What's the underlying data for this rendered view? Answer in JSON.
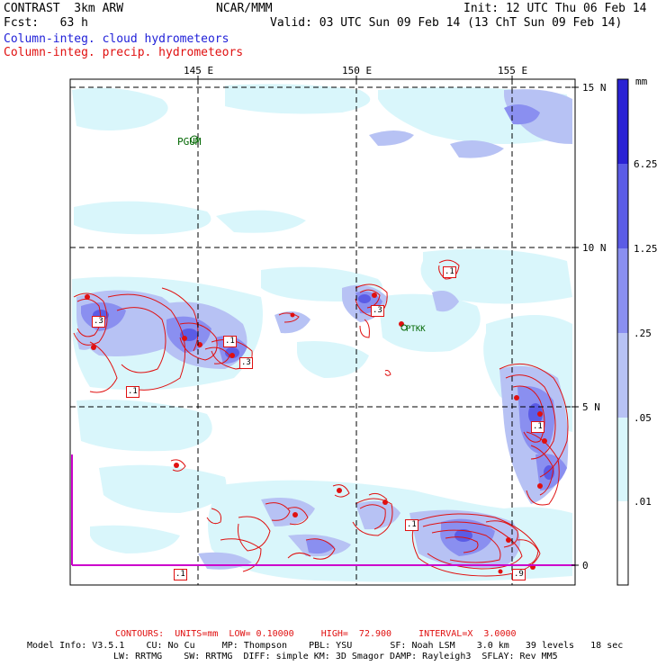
{
  "header": {
    "model": "CONTRAST  3km ARW",
    "org": "NCAR/MMM",
    "init": "Init: 12 UTC Thu 06 Feb 14",
    "fcst": "Fcst:   63 h",
    "valid": "Valid: 03 UTC Sun 09 Feb 14 (13 ChT Sun 09 Feb 14)",
    "cloud_label": "Column-integ. cloud hydrometeors",
    "precip_label": "Column-integ. precip. hydrometeors"
  },
  "colors": {
    "cloud": "#1f1fd8",
    "precip": "#e01010",
    "shade_1": "#d9f6fb",
    "shade_2": "#b7c2f4",
    "shade_3": "#8a8ff0",
    "shade_4": "#5b5ce6",
    "shade_5": "#2a22d4"
  },
  "axes": {
    "lon_labels": [
      "145 E",
      "150 E",
      "155 E"
    ],
    "lat_labels": [
      "15 N",
      "10 N",
      "5 N",
      "0"
    ]
  },
  "stations": {
    "pgum": "PGUM",
    "ptkk": "PTKK"
  },
  "contour_labels": [
    ".3",
    ".1",
    ".1",
    ".3",
    ".1",
    ".3",
    ".1",
    ".1",
    ".9",
    ".1"
  ],
  "colorbar": {
    "unit": "mm",
    "ticks": [
      "6.25",
      "1.25",
      ".25",
      ".05",
      ".01"
    ]
  },
  "footer": {
    "contours": "CONTOURS:  UNITS=mm  LOW= 0.10000     HIGH=  72.900     INTERVAL=X  3.0000",
    "model_line1": "Model Info: V3.5.1    CU: No Cu     MP: Thompson    PBL: YSU       SF: Noah LSM    3.0 km   39 levels   18 sec",
    "model_line2": "LW: RRTMG    SW: RRTMG  DIFF: simple KM: 3D Smagor DAMP: Rayleigh3  SFLAY: Rev MM5"
  }
}
